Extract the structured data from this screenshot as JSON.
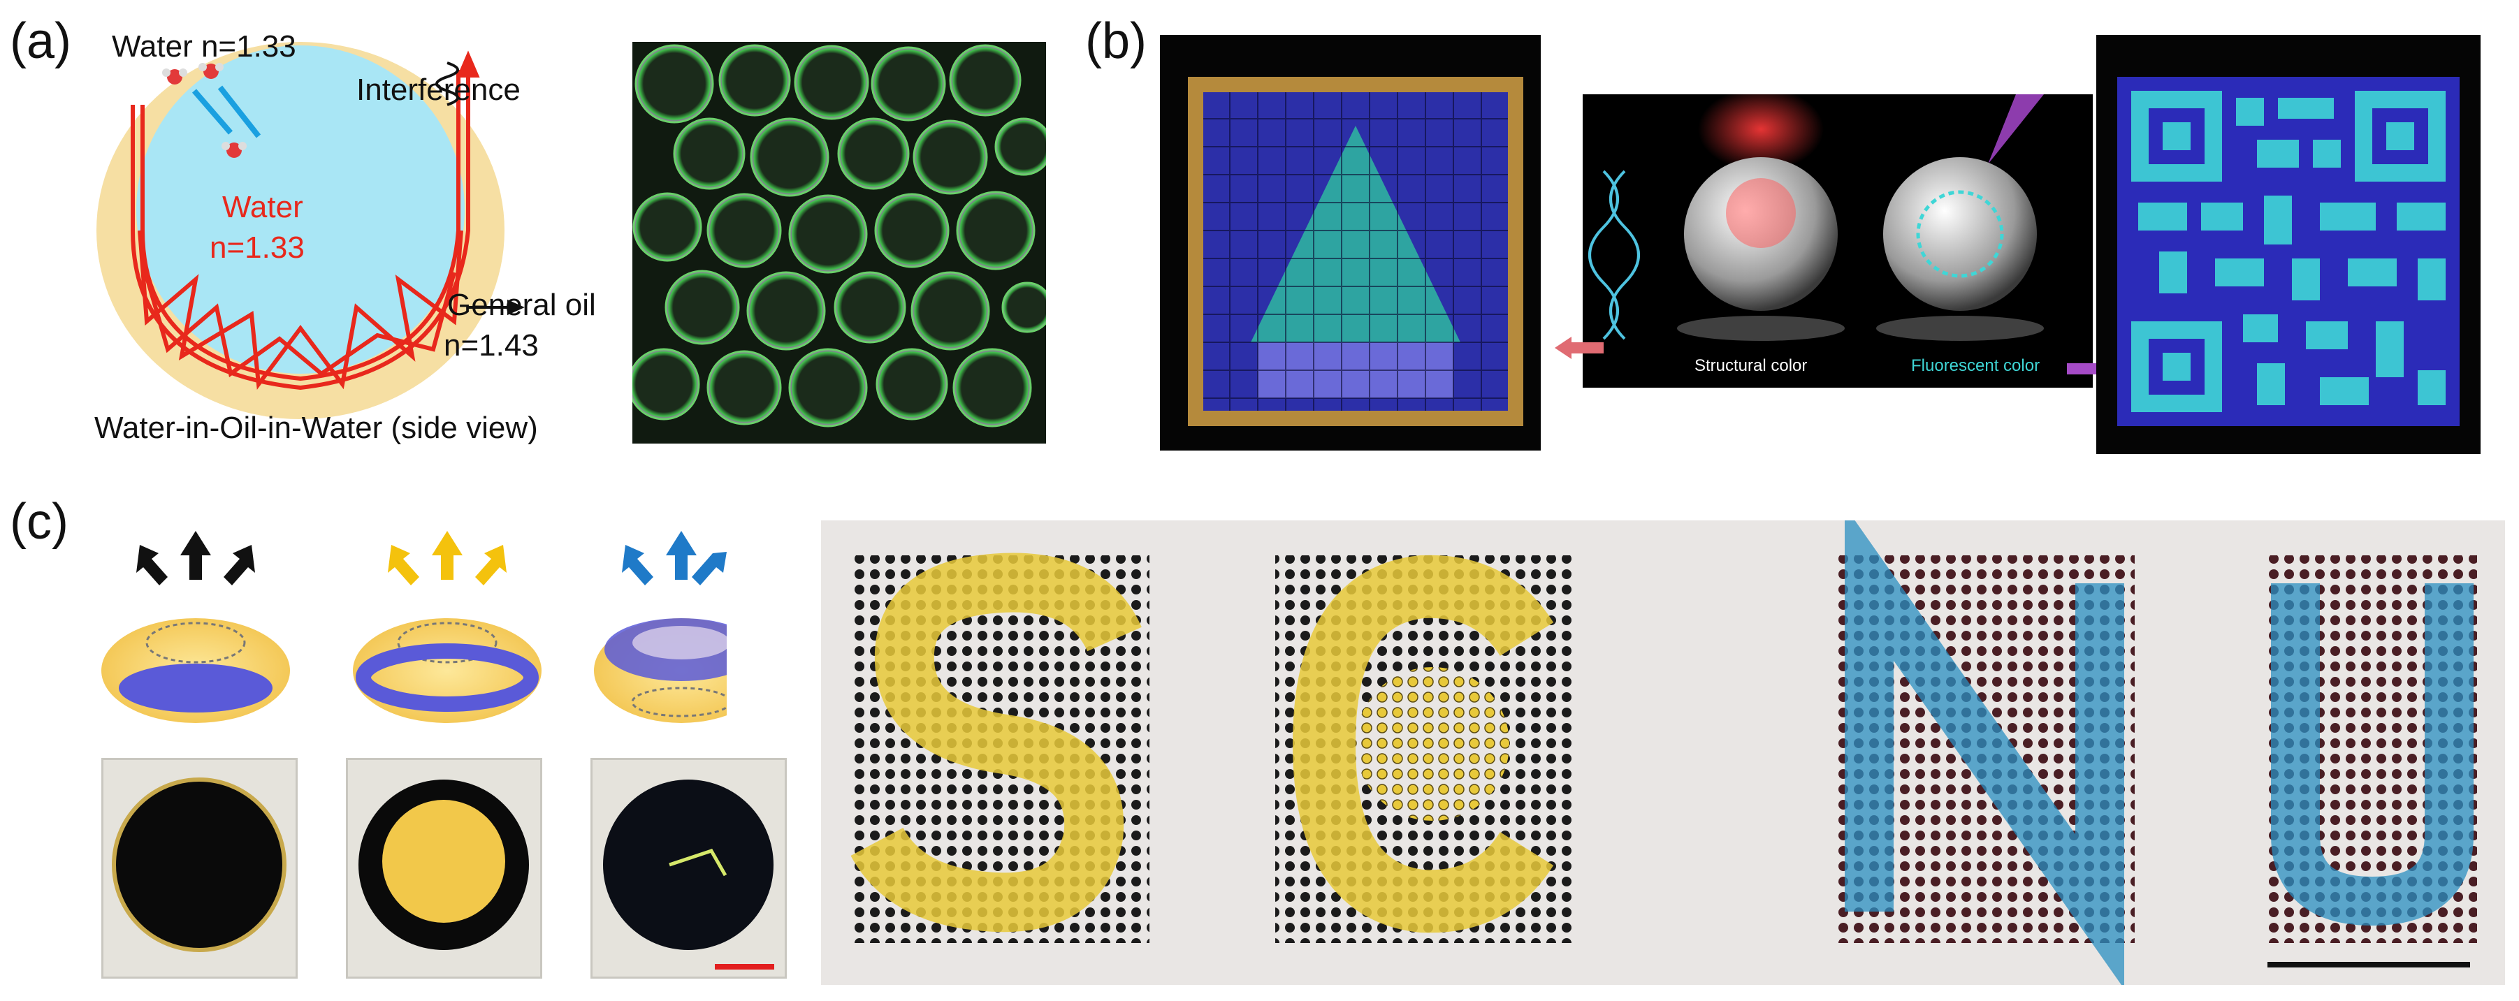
{
  "panels": {
    "a": {
      "label": "(a)",
      "water_outer": "Water n=1.33",
      "interference": "Interference",
      "water_inner_1": "Water",
      "water_inner_2": "n=1.33",
      "general_oil_1": "General oil",
      "general_oil_2": "n=1.43",
      "caption": "Water-in-Oil-in-Water (side view)"
    },
    "b": {
      "label": "(b)",
      "structural": "Structural color",
      "fluorescent": "Fluorescent color"
    },
    "c": {
      "label": "(c)"
    }
  },
  "colors": {
    "water_blue": "#a9e6f5",
    "oil_yellow": "#f6dfa3",
    "ray_red": "#e8281c",
    "arrow_pink": "#e06b72",
    "arrow_purple": "#a54bc7",
    "arrow_black": "#111111",
    "arrow_yellow": "#f4c20d",
    "arrow_blue": "#1f7ac8",
    "scale_red": "#e21f1f",
    "fluor_cyan": "#3fd6d6"
  },
  "icons": [
    "arrow-right-icon",
    "arrow-left-icon",
    "dna-icon",
    "droplet-icon"
  ]
}
